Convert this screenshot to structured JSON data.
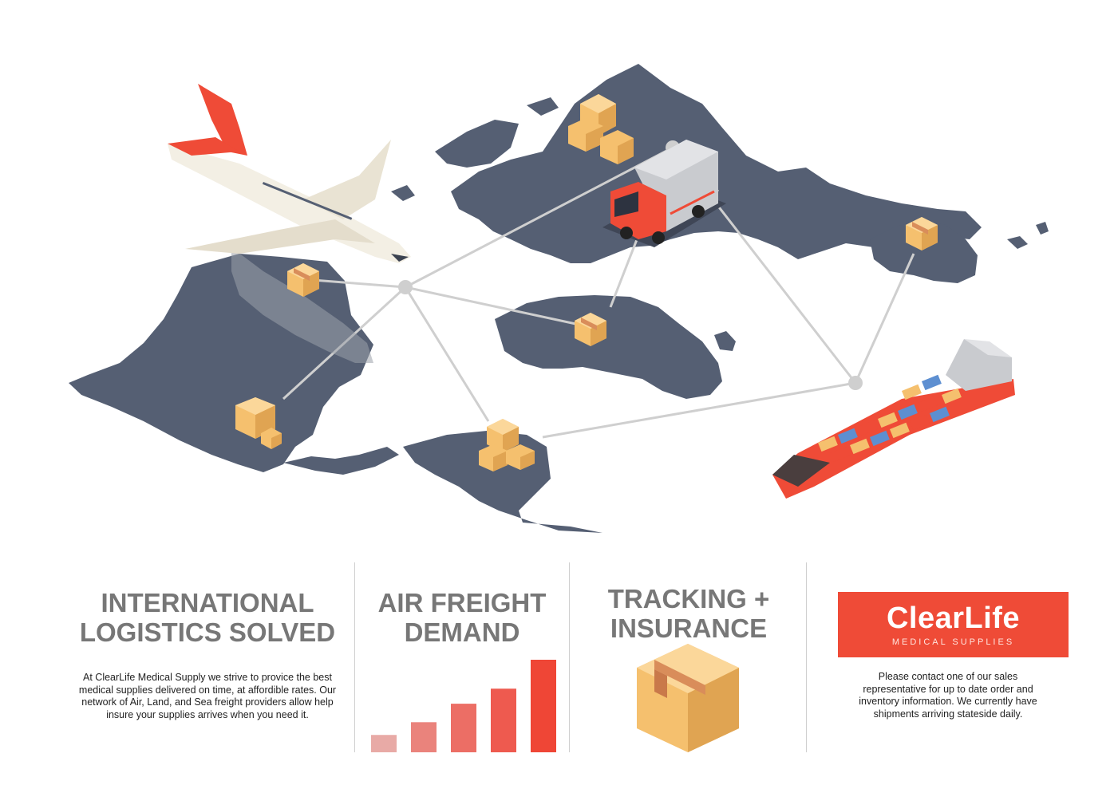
{
  "panels": {
    "logistics": {
      "title_line1": "INTERNATIONAL",
      "title_line2": "LOGISTICS SOLVED",
      "body": "At ClearLife Medical Supply we strive to provice the best medical supplies delivered on time, at affordible rates.  Our network of Air, Land, and Sea freight providers allow help insure your supplies arrives when you need it."
    },
    "air_freight": {
      "title_line1": "AIR FREIGHT",
      "title_line2": "DEMAND"
    },
    "tracking": {
      "title_line1": "TRACKING +",
      "title_line2": "INSURANCE"
    },
    "contact": {
      "logo_name": "ClearLife",
      "logo_tagline": "MEDICAL SUPPLIES",
      "body": "Please contact one of our sales representative for up to date order and inventory information.  We currently have shipments arriving stateside daily."
    }
  },
  "chart_data": {
    "type": "bar",
    "categories": [
      "",
      "",
      "",
      "",
      ""
    ],
    "values": [
      1.5,
      2.6,
      4.2,
      5.5,
      8.0
    ],
    "ylim": [
      0,
      8
    ],
    "colors": [
      "#e8aaa6",
      "#ea837c",
      "#ec6e65",
      "#ee5a4f",
      "#ef4636"
    ],
    "grid": false,
    "legend": "none"
  },
  "colors": {
    "accent": "#ef4b37",
    "map": "#555f73",
    "heading": "#777777",
    "box": "#f5c06e"
  }
}
